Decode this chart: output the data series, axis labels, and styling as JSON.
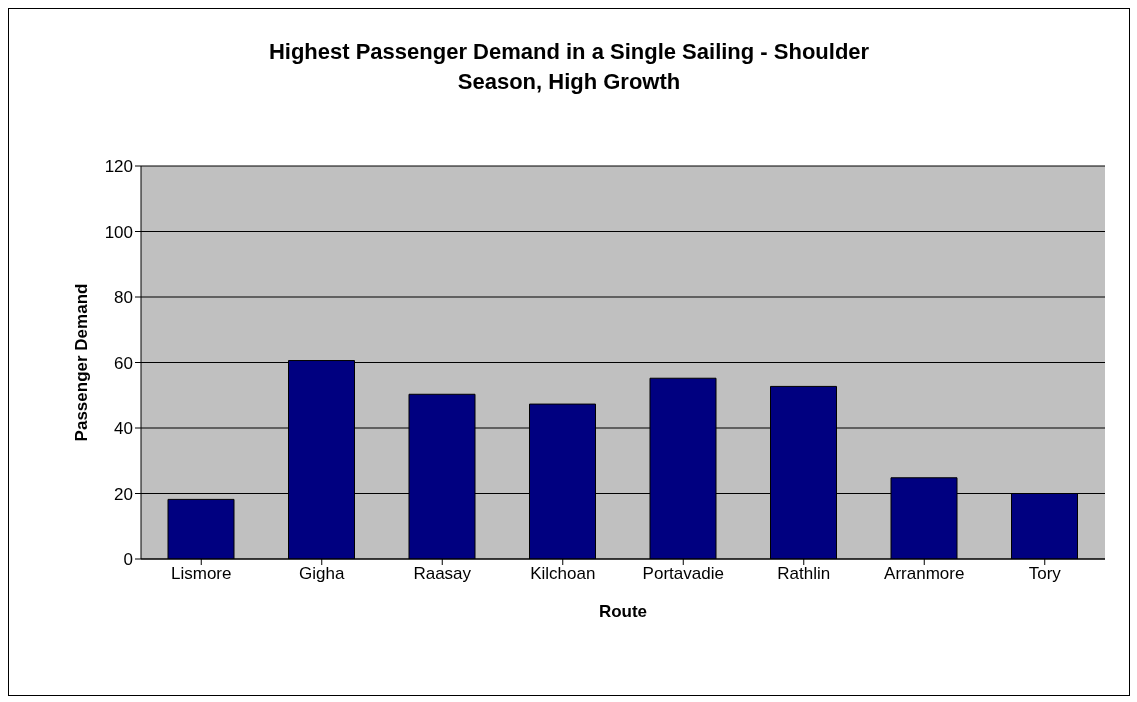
{
  "chart_data": {
    "type": "bar",
    "title": "Highest Passenger Demand in a Single Sailing - Shoulder Season, High Growth",
    "xlabel": "Route",
    "ylabel": "Passenger Demand",
    "categories": [
      "Lismore",
      "Gigha",
      "Raasay",
      "Kilchoan",
      "Portavadie",
      "Rathlin",
      "Arranmore",
      "Tory"
    ],
    "values": [
      18.2,
      60.6,
      50.3,
      47.3,
      55.2,
      52.7,
      24.8,
      20
    ],
    "color": "#000080",
    "ylim": [
      0,
      120
    ],
    "yticks": [
      0,
      20,
      40,
      60,
      80,
      100,
      120
    ],
    "grid": "y"
  }
}
